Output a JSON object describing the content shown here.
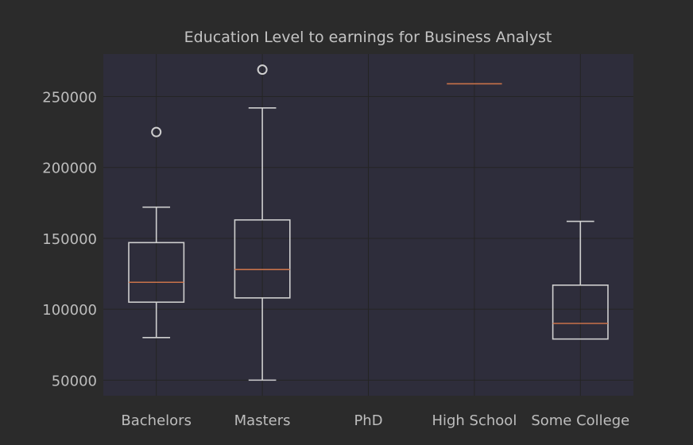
{
  "chart_data": {
    "type": "box",
    "title": "Education Level to earnings for Business Analyst",
    "xlabel": "",
    "ylabel": "",
    "categories": [
      "Bachelors",
      "Masters",
      "PhD",
      "High School",
      "Some College"
    ],
    "boxes": [
      {
        "category": "Bachelors",
        "whisker_low": 80000,
        "q1": 105000,
        "median": 119000,
        "q3": 147000,
        "whisker_high": 172000,
        "outliers": [
          225000
        ]
      },
      {
        "category": "Masters",
        "whisker_low": 50000,
        "q1": 108000,
        "median": 128000,
        "q3": 163000,
        "whisker_high": 242000,
        "outliers": [
          269000
        ]
      },
      {
        "category": "PhD",
        "whisker_low": null,
        "q1": null,
        "median": null,
        "q3": null,
        "whisker_high": null,
        "outliers": []
      },
      {
        "category": "High School",
        "whisker_low": 259000,
        "q1": 259000,
        "median": 259000,
        "q3": 259000,
        "whisker_high": 259000,
        "outliers": []
      },
      {
        "category": "Some College",
        "whisker_low": 79000,
        "q1": 79000,
        "median": 90000,
        "q3": 117000,
        "whisker_high": 162000,
        "outliers": []
      }
    ],
    "yticks": [
      50000,
      100000,
      150000,
      200000,
      250000
    ],
    "ytick_labels": [
      "50000",
      "100000",
      "150000",
      "200000",
      "250000"
    ],
    "ylim": [
      39000,
      280000
    ],
    "grid": true,
    "colors": {
      "figure_background": "#2b2b2b",
      "plot_background": "#2e2d3b",
      "box": "#cfcfcf",
      "median": "#c8724a",
      "grid": "#242424",
      "text": "#bdbdbd"
    }
  }
}
